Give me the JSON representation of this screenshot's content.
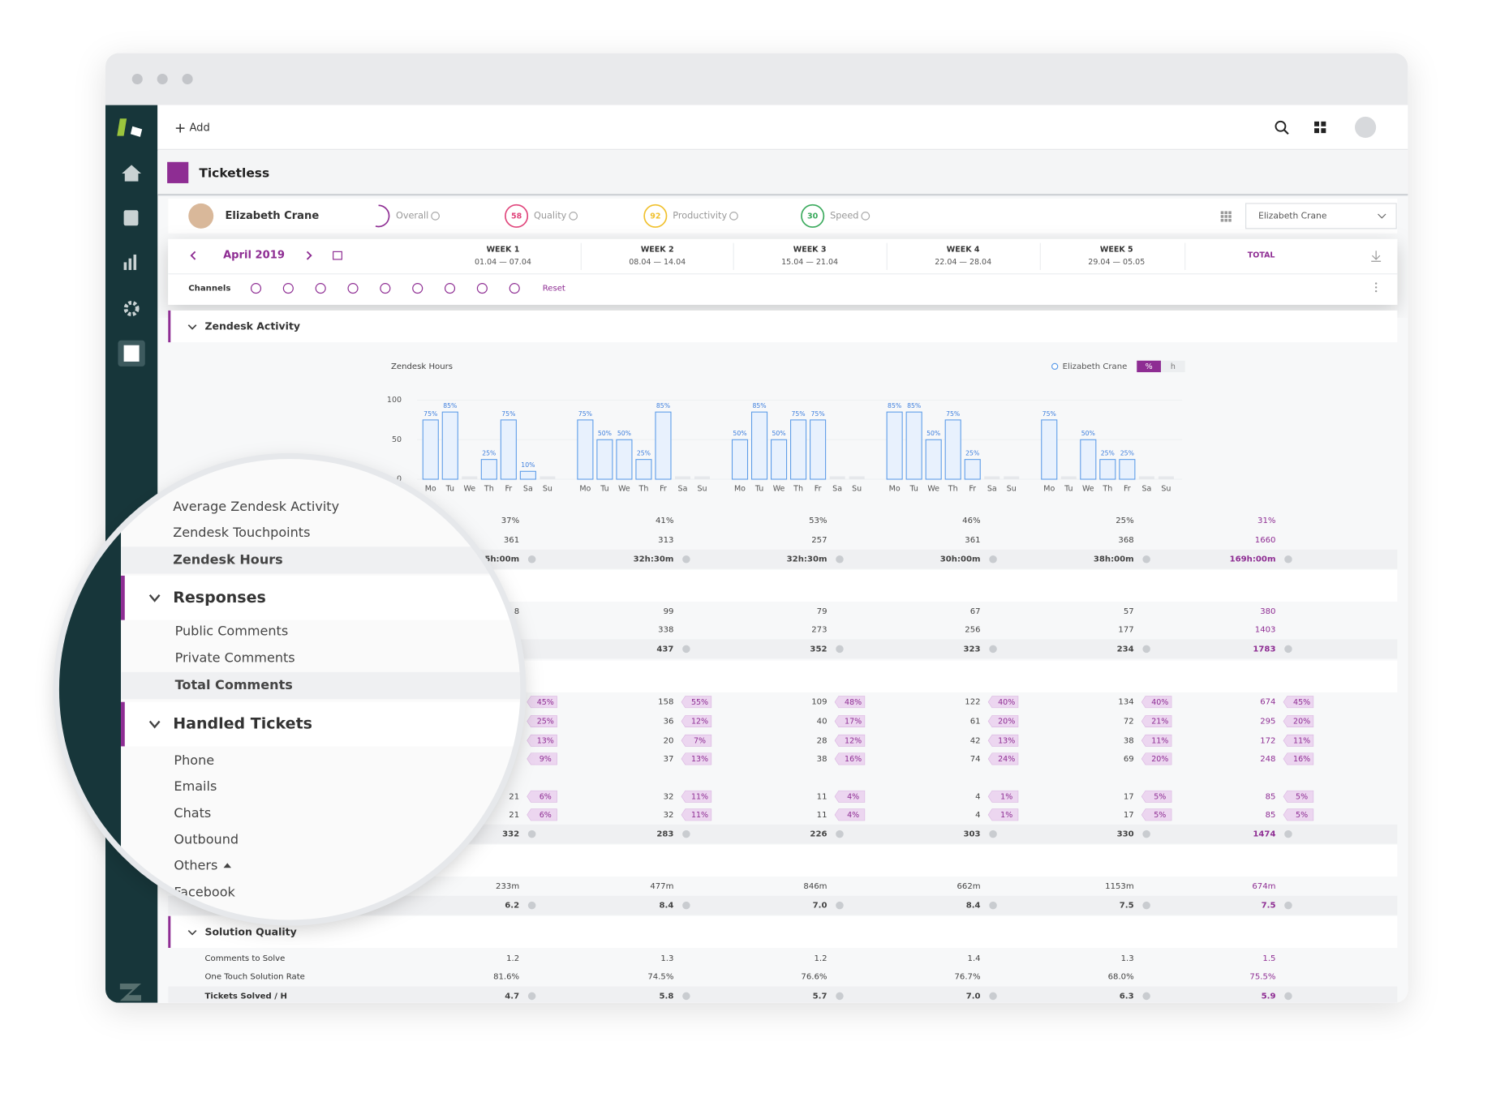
{
  "topbar": {
    "add": "Add"
  },
  "app": {
    "title": "Ticketless"
  },
  "agent": {
    "name": "Elizabeth Crane",
    "scores": [
      {
        "label": "Overall",
        "color": "#8e2d93"
      },
      {
        "label": "Quality",
        "value": "58",
        "color": "#e0457b"
      },
      {
        "label": "Productivity",
        "value": "92",
        "color": "#f0c02c"
      },
      {
        "label": "Speed",
        "value": "30",
        "color": "#3aaa5c"
      }
    ]
  },
  "selector": "Elizabeth Crane",
  "period": "April 2019",
  "columns": [
    {
      "title": "WEEK 1",
      "range": "01.04 — 07.04"
    },
    {
      "title": "WEEK 2",
      "range": "08.04 — 14.04"
    },
    {
      "title": "WEEK 3",
      "range": "15.04 — 21.04"
    },
    {
      "title": "WEEK 4",
      "range": "22.04 — 28.04"
    },
    {
      "title": "WEEK 5",
      "range": "29.04 — 05.05"
    },
    {
      "title": "TOTAL"
    }
  ],
  "channels": {
    "label": "Channels",
    "reset": "Reset"
  },
  "chart_data": {
    "type": "bar",
    "title": "Zendesk Hours",
    "color": "#5b9be8",
    "categories": [
      "Mo",
      "Tu",
      "We",
      "Th",
      "Fr",
      "Sa",
      "Su",
      "Mo",
      "Tu",
      "We",
      "Th",
      "Fr",
      "Sa",
      "Su",
      "Mo",
      "Tu",
      "We",
      "Th",
      "Fr",
      "Sa",
      "Su",
      "Mo",
      "Tu",
      "We",
      "Th",
      "Fr",
      "Sa",
      "Su",
      "Mo",
      "Tu",
      "We",
      "Th",
      "Fr",
      "Sa",
      "Su"
    ],
    "values": [
      75,
      85,
      0,
      25,
      75,
      10,
      0,
      75,
      50,
      50,
      25,
      85,
      0,
      0,
      50,
      85,
      50,
      75,
      75,
      0,
      0,
      85,
      85,
      50,
      75,
      25,
      0,
      0,
      75,
      0,
      50,
      25,
      25,
      0,
      0
    ],
    "value_labels": [
      "75%",
      "85%",
      null,
      "25%",
      "75%",
      "10%",
      null,
      "75%",
      "50%",
      "50%",
      "25%",
      "85%",
      null,
      null,
      "50%",
      "85%",
      "50%",
      "75%",
      "75%",
      null,
      null,
      "85%",
      "85%",
      "50%",
      "75%",
      "25%",
      null,
      null,
      "75%",
      null,
      "50%",
      "25%",
      "25%",
      null,
      null
    ],
    "ylim": [
      0,
      100
    ],
    "yticks": [
      0,
      50,
      100
    ],
    "grid": true,
    "legend": {
      "name": "Elizabeth Crane",
      "units": [
        "%",
        "h"
      ]
    }
  },
  "sections": [
    {
      "title": "Zendesk Activity",
      "rows": [
        {
          "label": "Average Zendesk Activity",
          "values": [
            "37%",
            "41%",
            "53%",
            "46%",
            "25%",
            "31%"
          ]
        },
        {
          "label": "Zendesk Touchpoints",
          "values": [
            "361",
            "313",
            "257",
            "361",
            "368",
            "1660"
          ]
        },
        {
          "label": "Zendesk Hours",
          "bold": true,
          "values": [
            "5h:00m",
            "32h:30m",
            "32h:30m",
            "30h:00m",
            "38h:00m",
            "169h:00m"
          ]
        }
      ]
    },
    {
      "title": "Responses",
      "rows": [
        {
          "label": "Public Comments",
          "values": [
            "8",
            "99",
            "79",
            "67",
            "57",
            "380"
          ]
        },
        {
          "label": "Private Comments",
          "values": [
            null,
            "338",
            "273",
            "256",
            "177",
            "1403"
          ]
        },
        {
          "label": "Total Comments",
          "bold": true,
          "values": [
            null,
            "437",
            "352",
            "323",
            "234",
            "1783"
          ]
        }
      ]
    },
    {
      "title": "Handled Tickets",
      "rows": [
        {
          "label": "Phone",
          "values": [
            null,
            "158",
            "109",
            "122",
            "134",
            "674"
          ],
          "shares": [
            "45%",
            "55%",
            "48%",
            "40%",
            "40%",
            "45%"
          ]
        },
        {
          "label": "Emails",
          "values": [
            null,
            "36",
            "40",
            "61",
            "72",
            "295"
          ],
          "shares": [
            "25%",
            "12%",
            "17%",
            "20%",
            "21%",
            "20%"
          ]
        },
        {
          "label": "Chats",
          "values": [
            null,
            "20",
            "28",
            "42",
            "38",
            "172"
          ],
          "shares": [
            "13%",
            "7%",
            "12%",
            "13%",
            "11%",
            "11%"
          ]
        },
        {
          "label": "Outbound",
          "values": [
            null,
            "37",
            "38",
            "74",
            "69",
            "248"
          ],
          "shares": [
            "9%",
            "13%",
            "16%",
            "24%",
            "20%",
            "16%"
          ]
        },
        {
          "label": "Others"
        },
        {
          "label": "Facebook",
          "values": [
            "21",
            "32",
            "11",
            "4",
            "17",
            "85"
          ],
          "shares": [
            "6%",
            "11%",
            "4%",
            "1%",
            "5%",
            "5%"
          ]
        },
        {
          "values": [
            "21",
            "32",
            "11",
            "4",
            "17",
            "85"
          ],
          "shares": [
            "6%",
            "11%",
            "4%",
            "1%",
            "5%",
            "5%"
          ]
        },
        {
          "bold": true,
          "values": [
            "332",
            "283",
            "226",
            "303",
            "330",
            "1474"
          ]
        }
      ]
    },
    {
      "rows": [
        {
          "values": [
            "233m",
            "477m",
            "846m",
            "662m",
            "1153m",
            "674m"
          ]
        },
        {
          "bold": true,
          "values": [
            "6.2",
            "8.4",
            "7.0",
            "8.4",
            "7.5",
            "7.5"
          ]
        }
      ]
    },
    {
      "title": "Solution Quality",
      "rows": [
        {
          "label": "Comments to Solve",
          "values": [
            "1.2",
            "1.3",
            "1.2",
            "1.4",
            "1.3",
            "1.5"
          ]
        },
        {
          "label": "One Touch Solution Rate",
          "values": [
            "81.6%",
            "74.5%",
            "76.6%",
            "76.7%",
            "68.0%",
            "75.5%"
          ]
        },
        {
          "label": "Tickets Solved / H",
          "bold": true,
          "values": [
            "4.7",
            "5.8",
            "5.7",
            "7.0",
            "6.3",
            "5.9"
          ]
        }
      ]
    }
  ]
}
